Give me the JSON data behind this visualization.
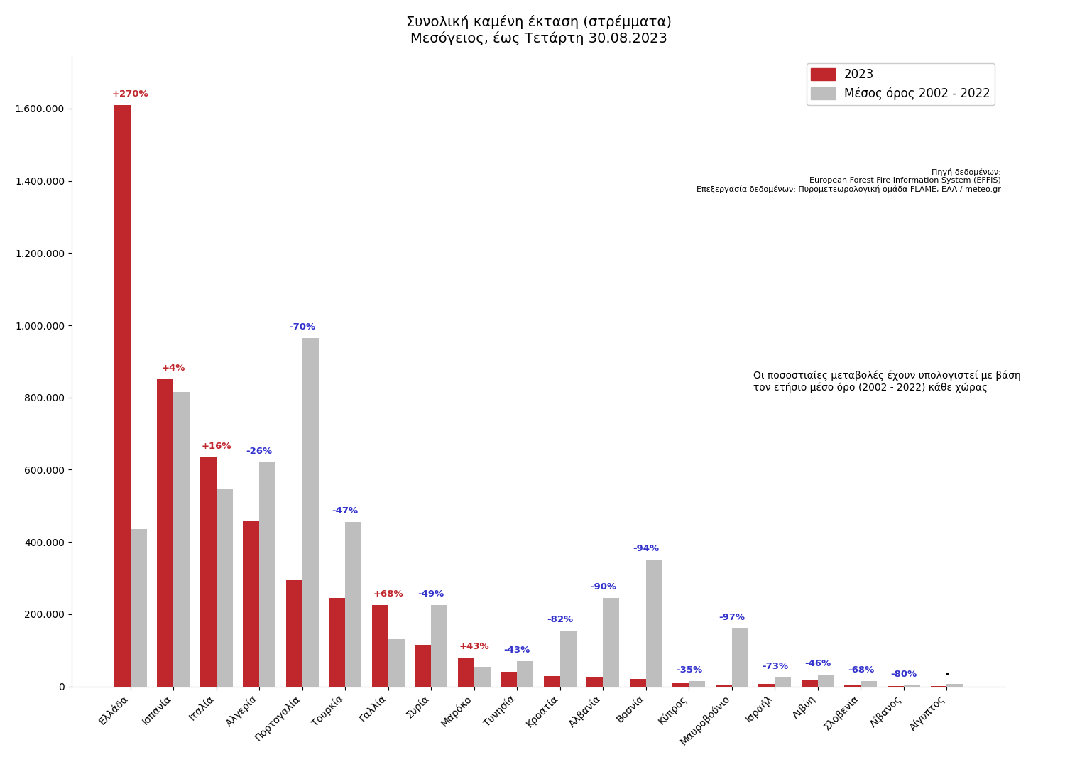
{
  "title_line1": "Συνολική καμένη έκταση (στρέμματα)",
  "title_line2": "Μεσόγειος, έως Τετάρτη 30.08.2023",
  "categories": [
    "Ελλάδα",
    "Ισπανία",
    "Ιταλία",
    "Αλγερία",
    "Πορτογαλία",
    "Τουρκία",
    "Γαλλία",
    "Συρία",
    "Μαρόκο",
    "Τυνησία",
    "Κροατία",
    "Αλβανία",
    "Βοσνία",
    "Κύπρος",
    "Μαυροβούνιο",
    "Ισραήλ",
    "Λιβύη",
    "Σλοβενία",
    "Λίβανος",
    "Αίγυπτος"
  ],
  "values_2023": [
    1610000,
    850000,
    635000,
    460000,
    295000,
    245000,
    225000,
    115000,
    80000,
    40000,
    28000,
    25000,
    20000,
    10000,
    5000,
    7000,
    18000,
    5000,
    500,
    1500
  ],
  "values_avg": [
    435000,
    815000,
    545000,
    620000,
    965000,
    455000,
    130000,
    225000,
    55000,
    70000,
    155000,
    245000,
    350000,
    15000,
    160000,
    25000,
    33000,
    14000,
    2500,
    7500
  ],
  "pct_labels": [
    "+270%",
    "+4%",
    "+16%",
    "-26%",
    "-70%",
    "-47%",
    "+68%",
    "-49%",
    "+43%",
    "-43%",
    "-82%",
    "-90%",
    "-94%",
    "-35%",
    "-97%",
    "-73%",
    "-46%",
    "-68%",
    "-80%",
    "·"
  ],
  "pct_colors": [
    "#C0272D",
    "#C0272D",
    "#C0272D",
    "#3333CC",
    "#3333CC",
    "#3333CC",
    "#C0272D",
    "#3333CC",
    "#C0272D",
    "#3333CC",
    "#3333CC",
    "#3333CC",
    "#3333CC",
    "#3333CC",
    "#3333CC",
    "#3333CC",
    "#3333CC",
    "#3333CC",
    "#3333CC",
    "#3333CC"
  ],
  "color_2023": "#C0272D",
  "color_avg": "#BEBEBE",
  "legend_2023": "2023",
  "legend_avg": "Μέσος όρος 2002 - 2022",
  "source_line1": "Πηγή δεδομένων:",
  "source_line2": "European Forest Fire Information System (EFFIS)",
  "source_line3": "Επεξεργασία δεδομένων: Πυρομετεωρολογική ομάδα FLAME, ΕΑΑ / meteo.gr",
  "note_text": "Οι ποσοστιαίες μεταβολές έχουν υπολογιστεί με βάση\nτον ετήσιο μέσο όρο (2002 - 2022) κάθε χώρας",
  "ylim": [
    0,
    1750000
  ],
  "yticks": [
    0,
    200000,
    400000,
    600000,
    800000,
    1000000,
    1200000,
    1400000,
    1600000
  ],
  "background_color": "#FFFFFF"
}
